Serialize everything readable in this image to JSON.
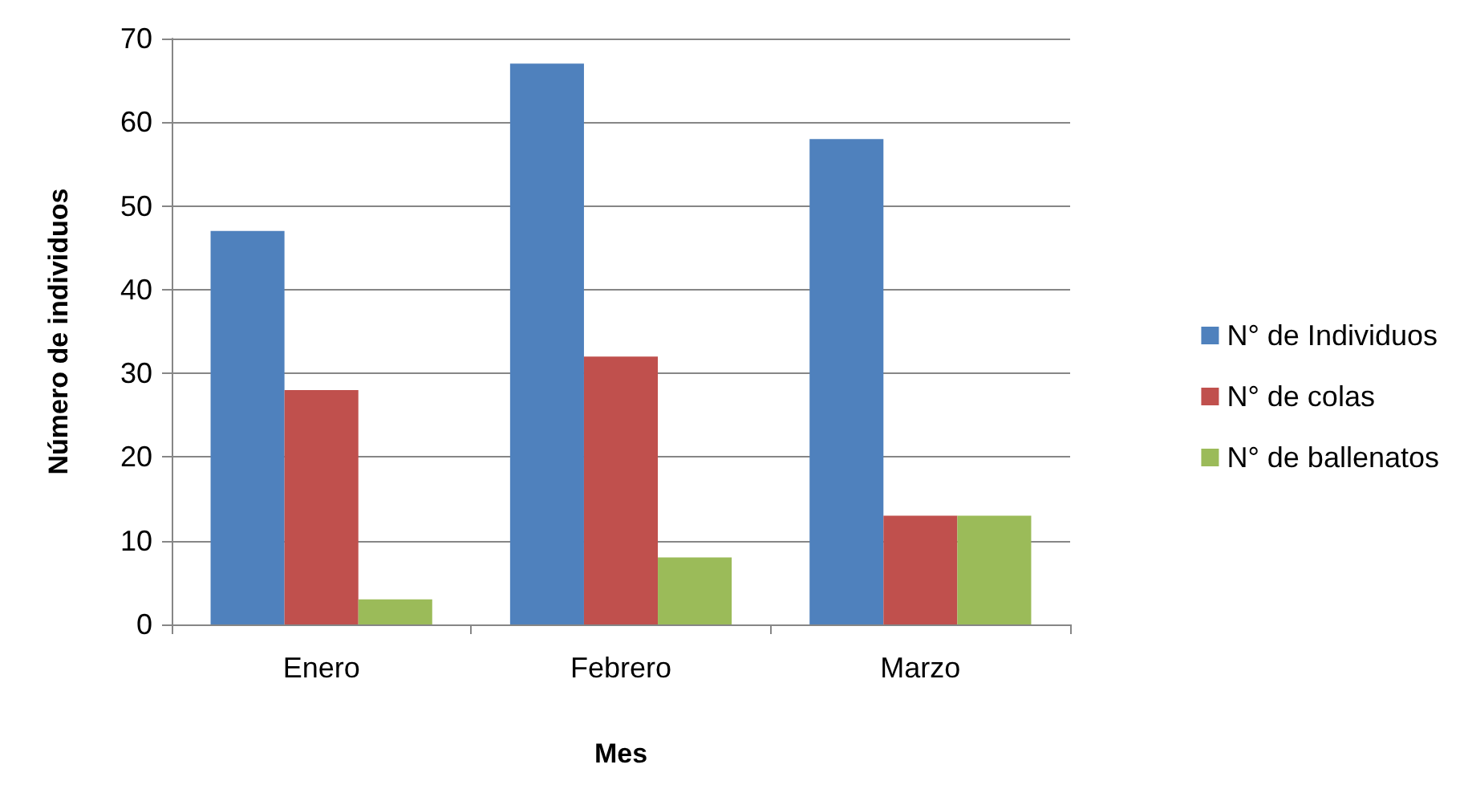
{
  "chart_data": {
    "type": "bar",
    "xlabel": "Mes",
    "ylabel": "Número de individuos",
    "categories": [
      "Enero",
      "Febrero",
      "Marzo"
    ],
    "series": [
      {
        "name": "N° de Individuos",
        "color": "#4f81bd",
        "values": [
          47,
          67,
          58
        ]
      },
      {
        "name": "N° de colas",
        "color": "#c0504d",
        "values": [
          28,
          32,
          13
        ]
      },
      {
        "name": "N° de ballenatos",
        "color": "#9bbb59",
        "values": [
          3,
          8,
          13
        ]
      }
    ],
    "ylim": [
      0,
      70
    ],
    "yticks": [
      0,
      10,
      20,
      30,
      40,
      50,
      60,
      70
    ],
    "grid": "y",
    "legend": "right"
  }
}
